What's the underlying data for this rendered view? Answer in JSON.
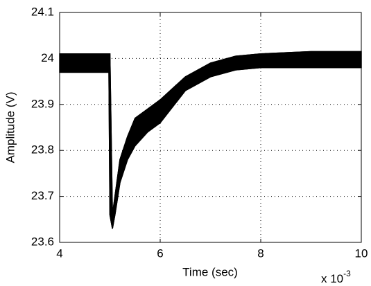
{
  "chart_data": {
    "type": "band",
    "xlabel": "Time (sec)",
    "ylabel": "Amplitude (V)",
    "x_multiplier": {
      "base": "x 10",
      "exponent": "-3"
    },
    "x": [
      4,
      4.98,
      5.0,
      5.05,
      5.1,
      5.2,
      5.35,
      5.5,
      5.75,
      6,
      6.5,
      7,
      7.5,
      8,
      9,
      10
    ],
    "upper": [
      24.01,
      24.01,
      24.01,
      23.66,
      23.7,
      23.78,
      23.83,
      23.87,
      23.89,
      23.91,
      23.96,
      23.99,
      24.005,
      24.01,
      24.015,
      24.015
    ],
    "lower": [
      23.97,
      23.97,
      23.66,
      23.63,
      23.66,
      23.73,
      23.78,
      23.81,
      23.84,
      23.86,
      23.93,
      23.96,
      23.975,
      23.98,
      23.98,
      23.98
    ],
    "color": "#000000",
    "xlim": [
      4,
      10
    ],
    "xticks": [
      4,
      6,
      8,
      10
    ],
    "ylim": [
      23.6,
      24.1
    ],
    "yticks": [
      23.6,
      23.7,
      23.8,
      23.9,
      24,
      24.1
    ],
    "grid": true
  }
}
